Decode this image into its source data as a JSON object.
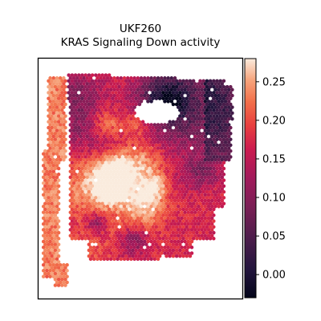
{
  "chart_data": {
    "type": "heatmap",
    "subtype": "spatial-spot-map",
    "title": "UKF260",
    "subtitle": "KRAS Signaling Down activity",
    "xlabel": "",
    "ylabel": "",
    "grid": false,
    "colormap": "rocket",
    "colorbar": {
      "range": [
        -0.03,
        0.28
      ],
      "ticks": [
        -0.0,
        0.05,
        0.1,
        0.15,
        0.2,
        0.25
      ],
      "tick_labels": [
        "0.00",
        "0.05",
        "0.10",
        "0.15",
        "0.20",
        "0.25"
      ],
      "placement": "right"
    },
    "colors": {
      "low": "#03051a",
      "mid": "#cb1b4f",
      "high": "#faebdd"
    },
    "regions": [
      {
        "name": "left-strip",
        "typical_value": 0.24
      },
      {
        "name": "central-tissue",
        "typical_value": 0.18
      },
      {
        "name": "upper-right",
        "typical_value": 0.07
      },
      {
        "name": "right-edge",
        "typical_value": 0.03
      }
    ]
  }
}
